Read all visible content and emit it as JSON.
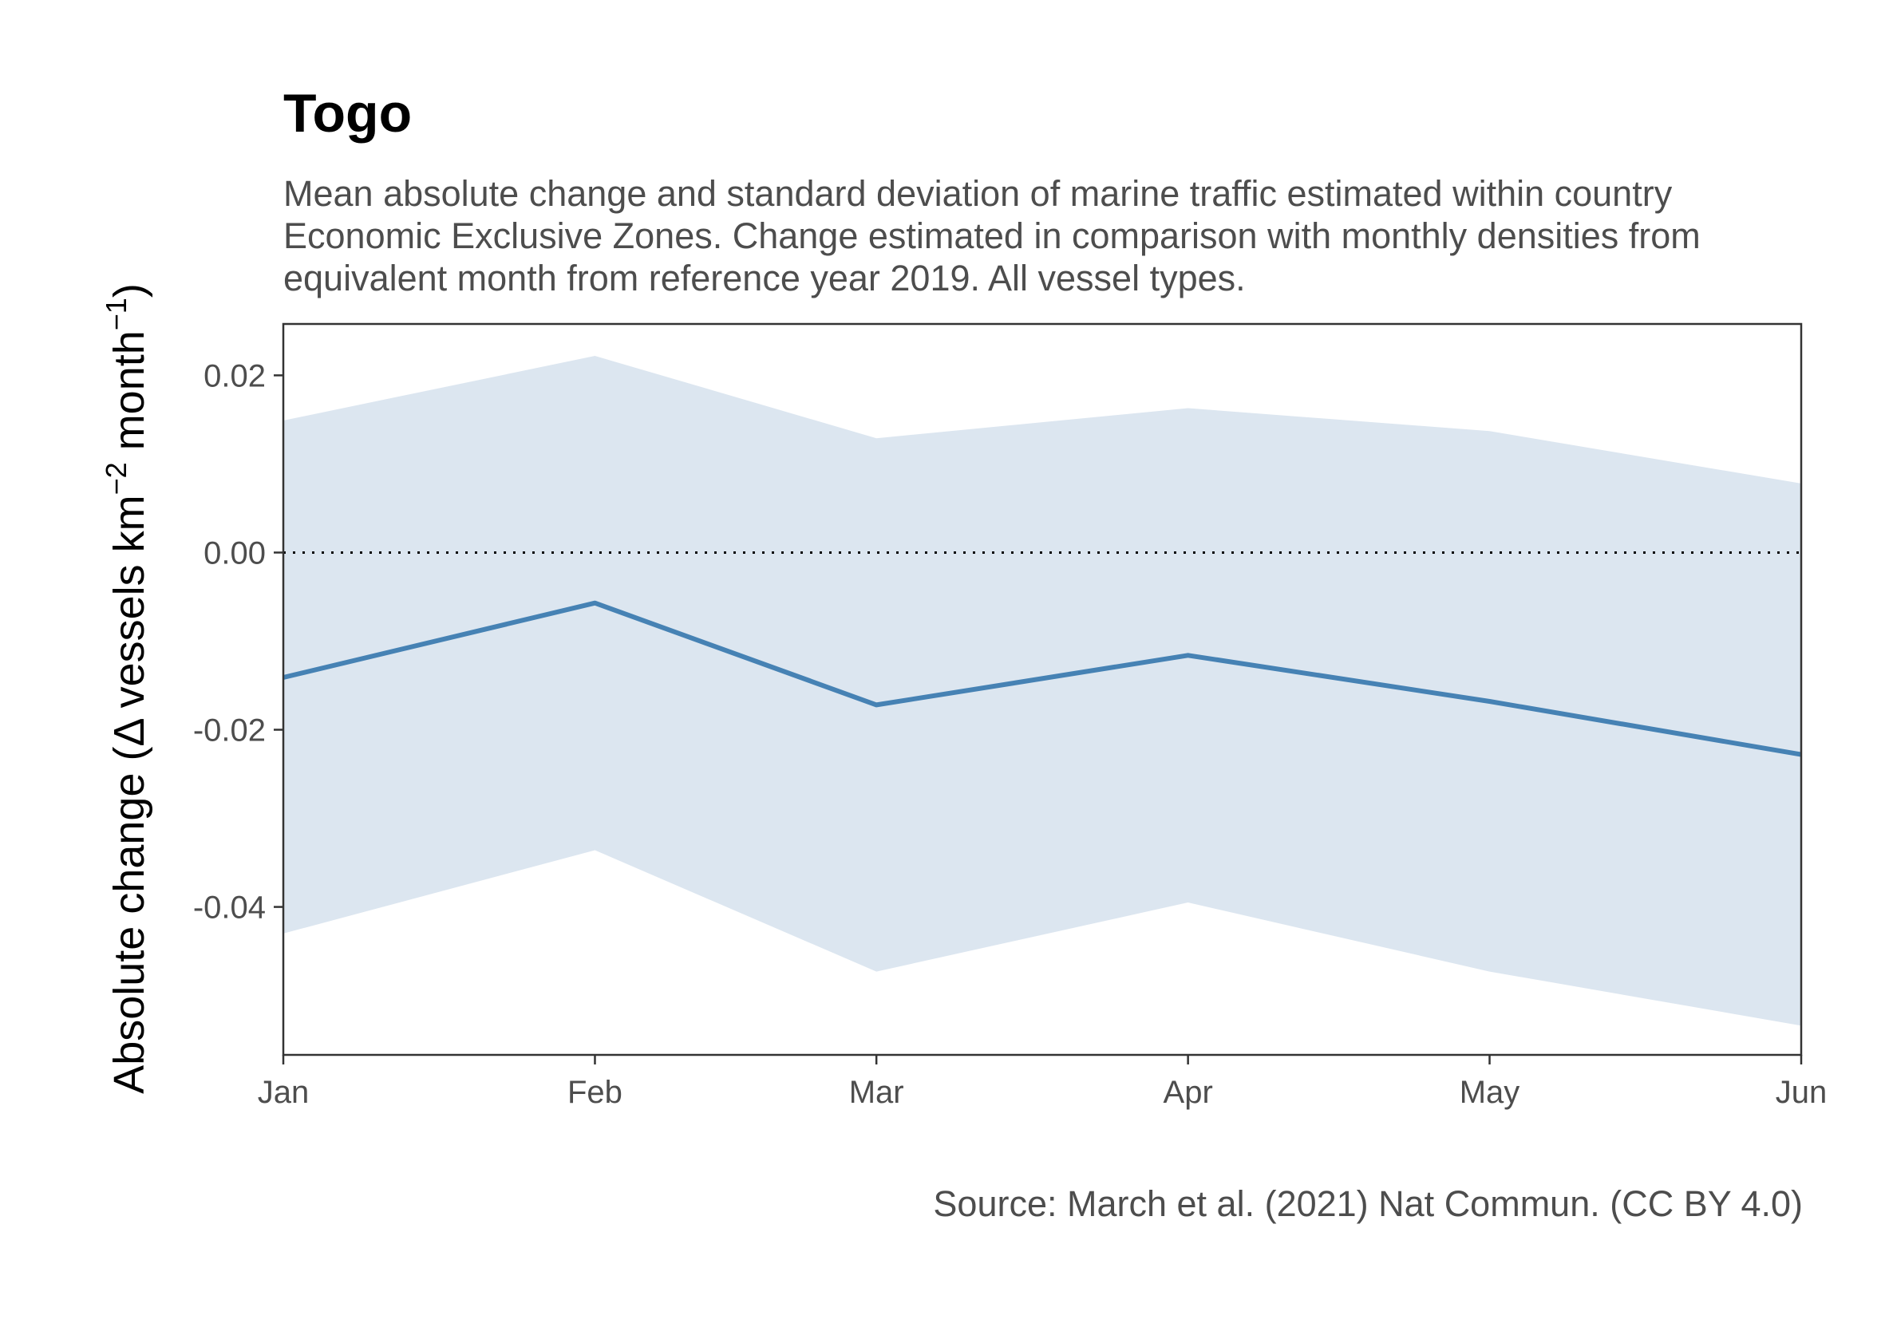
{
  "chart_data": {
    "type": "area",
    "title": "Togo",
    "subtitle": "Mean absolute change and standard deviation of marine traffic estimated within country Economic Exclusive Zones. Change estimated in comparison with monthly densities from equivalent month from reference year 2019. All vessel types.",
    "caption": "Source: March et al. (2021) Nat Commun. (CC BY 4.0)",
    "xlabel": "",
    "ylabel": {
      "prefix": "Absolute change (",
      "delta": "Δ",
      "units_a": " vessels km",
      "exp_a": "−2",
      "units_b": " month",
      "exp_b": "−1",
      "suffix": ")"
    },
    "categories": [
      "Jan",
      "Feb",
      "Mar",
      "Apr",
      "May",
      "Jun"
    ],
    "x_days": [
      0,
      31,
      59,
      90,
      120,
      151
    ],
    "series": [
      {
        "values": [
          -0.0141,
          -0.0057,
          -0.0172,
          -0.0116,
          -0.0168,
          -0.0228
        ],
        "upper": [
          0.0149,
          0.0222,
          0.0129,
          0.0163,
          0.0137,
          0.0078
        ],
        "lower": [
          -0.043,
          -0.0336,
          -0.0473,
          -0.0395,
          -0.0473,
          -0.0534
        ],
        "color": "#4682b4",
        "band_color": "#dce6f0"
      }
    ],
    "reference_line": 0,
    "yticks": [
      0.02,
      0.0,
      -0.02,
      -0.04
    ],
    "ytick_labels": [
      "0.02",
      "0.00",
      "-0.02",
      "-0.04"
    ],
    "ylim": [
      -0.0567,
      0.0258
    ],
    "grid": false,
    "legend": "none"
  }
}
